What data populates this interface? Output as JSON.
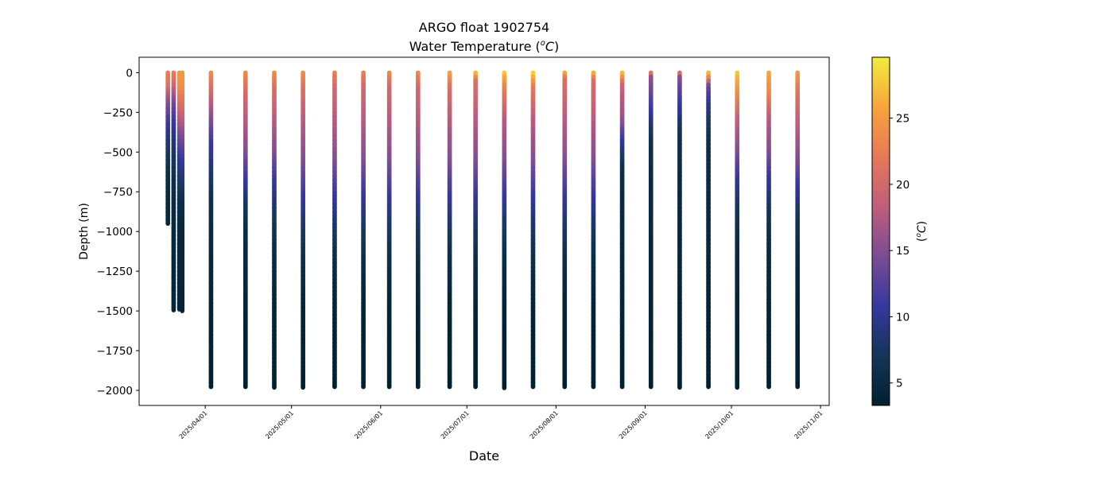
{
  "chart_data": {
    "type": "scatter",
    "title": "ARGO float 1902754",
    "subtitle_prefix": "Water Temperature (",
    "subtitle_unit_sup": "o",
    "subtitle_unit": "C",
    "subtitle_suffix": ")",
    "xlabel": "Date",
    "ylabel": "Depth (m)",
    "x_axis_type": "date",
    "xlim": [
      "2025-03-09",
      "2025-11-04"
    ],
    "ylim": [
      -2095,
      97
    ],
    "x_ticks": [
      "2025/04/01",
      "2025/05/01",
      "2025/06/01",
      "2025/07/01",
      "2025/08/01",
      "2025/09/01",
      "2025/10/01",
      "2025/11/01"
    ],
    "y_ticks": [
      0,
      -250,
      -500,
      -750,
      -1000,
      -1250,
      -1500,
      -1750,
      -2000
    ],
    "y_tick_labels": [
      "0",
      "−250",
      "−500",
      "−750",
      "−1000",
      "−1250",
      "−1500",
      "−1750",
      "−2000"
    ],
    "colorbar": {
      "label_prefix": "(",
      "label_sup": "o",
      "label_unit": "C",
      "label_suffix": ")",
      "range": [
        3.3,
        29.6
      ],
      "ticks": [
        5,
        10,
        15,
        20,
        25
      ],
      "colormap": [
        "#00202f",
        "#143658",
        "#3637a0",
        "#7b4c93",
        "#c05d7c",
        "#e67957",
        "#f8a43a",
        "#f1ed3e"
      ]
    },
    "grid": false,
    "legend": "none",
    "profiles": [
      {
        "date": "2025-03-19",
        "max_depth": -950,
        "surface_temp": 22.5,
        "profile": [
          [
            0,
            22.5
          ],
          [
            -80,
            21.5
          ],
          [
            -200,
            15
          ],
          [
            -350,
            10.5
          ],
          [
            -500,
            7.5
          ],
          [
            -650,
            5.5
          ],
          [
            -950,
            4.5
          ]
        ]
      },
      {
        "date": "2025-03-21",
        "max_depth": -1495,
        "surface_temp": 22.5,
        "profile": [
          [
            0,
            22.5
          ],
          [
            -50,
            21.5
          ],
          [
            -200,
            14
          ],
          [
            -400,
            9
          ],
          [
            -700,
            5.5
          ],
          [
            -1000,
            4.5
          ],
          [
            -1495,
            4
          ]
        ]
      },
      {
        "date": "2025-03-23",
        "max_depth": -1490,
        "surface_temp": 25,
        "profile": [
          [
            0,
            25
          ],
          [
            -100,
            24
          ],
          [
            -200,
            21
          ],
          [
            -350,
            16
          ],
          [
            -550,
            10
          ],
          [
            -800,
            6
          ],
          [
            -1000,
            4.5
          ],
          [
            -1490,
            4
          ]
        ]
      },
      {
        "date": "2025-03-24",
        "max_depth": -1500,
        "surface_temp": 25,
        "profile": [
          [
            0,
            25
          ],
          [
            -100,
            24
          ],
          [
            -250,
            20
          ],
          [
            -400,
            15
          ],
          [
            -600,
            10
          ],
          [
            -800,
            6
          ],
          [
            -1000,
            4.5
          ],
          [
            -1500,
            4
          ]
        ]
      },
      {
        "date": "2025-04-03",
        "max_depth": -1978,
        "surface_temp": 24,
        "profile": [
          [
            0,
            24
          ],
          [
            -70,
            22
          ],
          [
            -200,
            18
          ],
          [
            -300,
            15
          ],
          [
            -450,
            11
          ],
          [
            -650,
            8
          ],
          [
            -800,
            6
          ],
          [
            -1000,
            5
          ],
          [
            -1500,
            4
          ],
          [
            -1978,
            3.5
          ]
        ]
      },
      {
        "date": "2025-04-15",
        "max_depth": -1978,
        "surface_temp": 24,
        "profile": [
          [
            0,
            24
          ],
          [
            -100,
            21
          ],
          [
            -300,
            18
          ],
          [
            -500,
            15
          ],
          [
            -700,
            10.5
          ],
          [
            -850,
            7
          ],
          [
            -1000,
            5.5
          ],
          [
            -1500,
            4
          ],
          [
            -1978,
            3.5
          ]
        ]
      },
      {
        "date": "2025-04-25",
        "max_depth": -1982,
        "surface_temp": 24,
        "profile": [
          [
            0,
            24
          ],
          [
            -100,
            21
          ],
          [
            -300,
            18
          ],
          [
            -500,
            15
          ],
          [
            -700,
            10.5
          ],
          [
            -900,
            7.5
          ],
          [
            -1100,
            5.5
          ],
          [
            -1500,
            4
          ],
          [
            -1982,
            3.5
          ]
        ]
      },
      {
        "date": "2025-05-05",
        "max_depth": -1982,
        "surface_temp": 24,
        "profile": [
          [
            0,
            24
          ],
          [
            -100,
            21
          ],
          [
            -300,
            18
          ],
          [
            -550,
            15
          ],
          [
            -800,
            10.5
          ],
          [
            -1000,
            7.5
          ],
          [
            -1200,
            5.5
          ],
          [
            -1500,
            4
          ],
          [
            -1982,
            3.5
          ]
        ]
      },
      {
        "date": "2025-05-16",
        "max_depth": -1978,
        "surface_temp": 23,
        "profile": [
          [
            0,
            23
          ],
          [
            -100,
            20
          ],
          [
            -300,
            18
          ],
          [
            -550,
            15
          ],
          [
            -800,
            10.5
          ],
          [
            -1000,
            7.5
          ],
          [
            -1200,
            5.5
          ],
          [
            -1500,
            4
          ],
          [
            -1978,
            3.5
          ]
        ]
      },
      {
        "date": "2025-05-26",
        "max_depth": -1978,
        "surface_temp": 23,
        "profile": [
          [
            0,
            23
          ],
          [
            -100,
            20
          ],
          [
            -300,
            18
          ],
          [
            -550,
            15
          ],
          [
            -800,
            10.5
          ],
          [
            -1000,
            7.5
          ],
          [
            -1200,
            5.5
          ],
          [
            -1500,
            4
          ],
          [
            -1978,
            3.5
          ]
        ]
      },
      {
        "date": "2025-06-04",
        "max_depth": -1978,
        "surface_temp": 24,
        "profile": [
          [
            0,
            24
          ],
          [
            -100,
            20
          ],
          [
            -300,
            18
          ],
          [
            -550,
            15
          ],
          [
            -800,
            10.5
          ],
          [
            -1000,
            7.5
          ],
          [
            -1200,
            5.5
          ],
          [
            -1500,
            4
          ],
          [
            -1978,
            3.5
          ]
        ]
      },
      {
        "date": "2025-06-14",
        "max_depth": -1978,
        "surface_temp": 24,
        "profile": [
          [
            0,
            24
          ],
          [
            -100,
            20
          ],
          [
            -300,
            18
          ],
          [
            -550,
            15
          ],
          [
            -800,
            10.5
          ],
          [
            -1000,
            7.5
          ],
          [
            -1200,
            5.5
          ],
          [
            -1500,
            4
          ],
          [
            -1978,
            3.5
          ]
        ]
      },
      {
        "date": "2025-06-25",
        "max_depth": -1978,
        "surface_temp": 26,
        "profile": [
          [
            0,
            26
          ],
          [
            -100,
            21
          ],
          [
            -300,
            18
          ],
          [
            -550,
            15
          ],
          [
            -800,
            10.5
          ],
          [
            -1000,
            7.5
          ],
          [
            -1200,
            5.5
          ],
          [
            -1500,
            4
          ],
          [
            -1978,
            3.5
          ]
        ]
      },
      {
        "date": "2025-07-04",
        "max_depth": -1978,
        "surface_temp": 28,
        "profile": [
          [
            0,
            28
          ],
          [
            -60,
            21
          ],
          [
            -300,
            18
          ],
          [
            -550,
            15
          ],
          [
            -800,
            10.5
          ],
          [
            -1000,
            7.5
          ],
          [
            -1200,
            5.5
          ],
          [
            -1500,
            4
          ],
          [
            -1978,
            3.5
          ]
        ]
      },
      {
        "date": "2025-07-14",
        "max_depth": -1985,
        "surface_temp": 28,
        "profile": [
          [
            0,
            28
          ],
          [
            -100,
            23
          ],
          [
            -300,
            18
          ],
          [
            -550,
            15
          ],
          [
            -800,
            10.5
          ],
          [
            -1000,
            7.5
          ],
          [
            -1200,
            5.5
          ],
          [
            -1500,
            4
          ],
          [
            -1985,
            3.5
          ]
        ]
      },
      {
        "date": "2025-07-24",
        "max_depth": -1978,
        "surface_temp": 29,
        "profile": [
          [
            0,
            29
          ],
          [
            -100,
            22
          ],
          [
            -300,
            18
          ],
          [
            -550,
            15
          ],
          [
            -800,
            10.5
          ],
          [
            -1000,
            7.5
          ],
          [
            -1200,
            5.5
          ],
          [
            -1500,
            4
          ],
          [
            -1978,
            3.5
          ]
        ]
      },
      {
        "date": "2025-08-04",
        "max_depth": -1978,
        "surface_temp": 27,
        "profile": [
          [
            0,
            27
          ],
          [
            -50,
            21
          ],
          [
            -300,
            18
          ],
          [
            -550,
            15
          ],
          [
            -800,
            10.5
          ],
          [
            -1000,
            7.5
          ],
          [
            -1200,
            5.5
          ],
          [
            -1500,
            4
          ],
          [
            -1978,
            3.5
          ]
        ]
      },
      {
        "date": "2025-08-14",
        "max_depth": -1978,
        "surface_temp": 28,
        "profile": [
          [
            0,
            28
          ],
          [
            -50,
            21
          ],
          [
            -300,
            18
          ],
          [
            -550,
            15
          ],
          [
            -800,
            10.5
          ],
          [
            -1000,
            7.5
          ],
          [
            -1200,
            5.5
          ],
          [
            -1500,
            4
          ],
          [
            -1978,
            3.5
          ]
        ]
      },
      {
        "date": "2025-08-24",
        "max_depth": -1978,
        "surface_temp": 28,
        "profile": [
          [
            0,
            28
          ],
          [
            -80,
            20
          ],
          [
            -150,
            18
          ],
          [
            -300,
            16
          ],
          [
            -450,
            10
          ],
          [
            -600,
            6
          ],
          [
            -800,
            5
          ],
          [
            -1500,
            4
          ],
          [
            -1978,
            3.5
          ]
        ]
      },
      {
        "date": "2025-09-03",
        "max_depth": -1978,
        "surface_temp": 25,
        "profile": [
          [
            0,
            25
          ],
          [
            -30,
            16
          ],
          [
            -200,
            12
          ],
          [
            -350,
            8
          ],
          [
            -450,
            6
          ],
          [
            -700,
            5
          ],
          [
            -1500,
            4
          ],
          [
            -1978,
            3.5
          ]
        ]
      },
      {
        "date": "2025-09-13",
        "max_depth": -1982,
        "surface_temp": 23,
        "profile": [
          [
            0,
            23
          ],
          [
            -40,
            15
          ],
          [
            -200,
            11
          ],
          [
            -350,
            7
          ],
          [
            -450,
            6
          ],
          [
            -700,
            5
          ],
          [
            -1500,
            4
          ],
          [
            -1982,
            3.5
          ]
        ]
      },
      {
        "date": "2025-09-23",
        "max_depth": -1978,
        "surface_temp": 28,
        "profile": [
          [
            0,
            28
          ],
          [
            -50,
            22
          ],
          [
            -90,
            14
          ],
          [
            -200,
            10
          ],
          [
            -350,
            7
          ],
          [
            -500,
            5.5
          ],
          [
            -1500,
            4
          ],
          [
            -1978,
            3.5
          ]
        ]
      },
      {
        "date": "2025-10-03",
        "max_depth": -1982,
        "surface_temp": 28,
        "profile": [
          [
            0,
            28
          ],
          [
            -100,
            25
          ],
          [
            -300,
            19
          ],
          [
            -500,
            15
          ],
          [
            -700,
            10
          ],
          [
            -900,
            6.5
          ],
          [
            -1100,
            5
          ],
          [
            -1500,
            4
          ],
          [
            -1982,
            3.5
          ]
        ]
      },
      {
        "date": "2025-10-14",
        "max_depth": -1978,
        "surface_temp": 26,
        "profile": [
          [
            0,
            26
          ],
          [
            -150,
            23
          ],
          [
            -300,
            18
          ],
          [
            -500,
            15
          ],
          [
            -700,
            10
          ],
          [
            -900,
            6.5
          ],
          [
            -1100,
            5
          ],
          [
            -1500,
            4
          ],
          [
            -1978,
            3.5
          ]
        ]
      },
      {
        "date": "2025-10-24",
        "max_depth": -1978,
        "surface_temp": 25,
        "profile": [
          [
            0,
            25
          ],
          [
            -150,
            21
          ],
          [
            -350,
            18
          ],
          [
            -550,
            15
          ],
          [
            -750,
            10
          ],
          [
            -950,
            6.5
          ],
          [
            -1150,
            5
          ],
          [
            -1500,
            4
          ],
          [
            -1978,
            3.5
          ]
        ]
      }
    ]
  }
}
